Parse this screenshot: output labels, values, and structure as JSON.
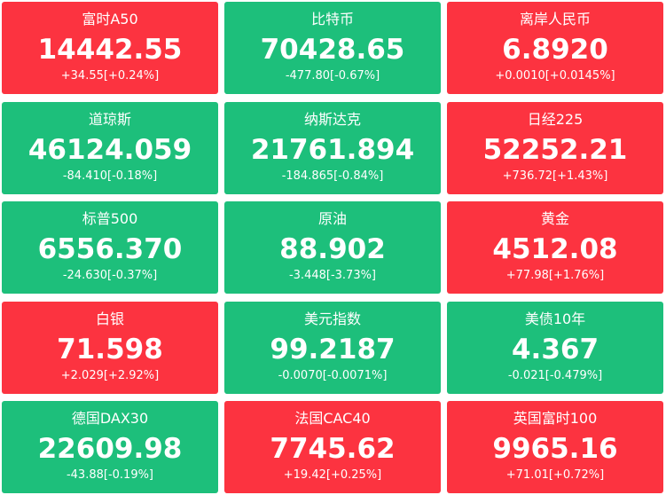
{
  "tiles": [
    {
      "name": "富时A50",
      "price": "14442.55",
      "change": "+34.55[+0.24%]",
      "color": "#fc3340"
    },
    {
      "name": "比特币",
      "price": "70428.65",
      "change": "-477.80[-0.67%]",
      "color": "#1dbf7b"
    },
    {
      "name": "离岸人民币",
      "price": "6.8920",
      "change": "+0.0010[+0.0145%]",
      "color": "#fc3340"
    },
    {
      "name": "道琼斯",
      "price": "46124.059",
      "change": "-84.410[-0.18%]",
      "color": "#1dbf7b"
    },
    {
      "name": "纳斯达克",
      "price": "21761.894",
      "change": "-184.865[-0.84%]",
      "color": "#1dbf7b"
    },
    {
      "name": "日经225",
      "price": "52252.21",
      "change": "+736.72[+1.43%]",
      "color": "#fc3340"
    },
    {
      "name": "标普500",
      "price": "6556.370",
      "change": "-24.630[-0.37%]",
      "color": "#1dbf7b"
    },
    {
      "name": "原油",
      "price": "88.902",
      "change": "-3.448[-3.73%]",
      "color": "#1dbf7b"
    },
    {
      "name": "黄金",
      "price": "4512.08",
      "change": "+77.98[+1.76%]",
      "color": "#fc3340"
    },
    {
      "name": "白银",
      "price": "71.598",
      "change": "+2.029[+2.92%]",
      "color": "#fc3340"
    },
    {
      "name": "美元指数",
      "price": "99.2187",
      "change": "-0.0070[-0.0071%]",
      "color": "#1dbf7b"
    },
    {
      "name": "美债10年",
      "price": "4.367",
      "change": "-0.021[-0.479%]",
      "color": "#1dbf7b"
    },
    {
      "name": "德国DAX30",
      "price": "22609.98",
      "change": "-43.88[-0.19%]",
      "color": "#1dbf7b"
    },
    {
      "name": "法国CAC40",
      "price": "7745.62",
      "change": "+19.42[+0.25%]",
      "color": "#fc3340"
    },
    {
      "name": "英国富时100",
      "price": "9965.16",
      "change": "+71.01[+0.72%]",
      "color": "#fc3340"
    }
  ]
}
